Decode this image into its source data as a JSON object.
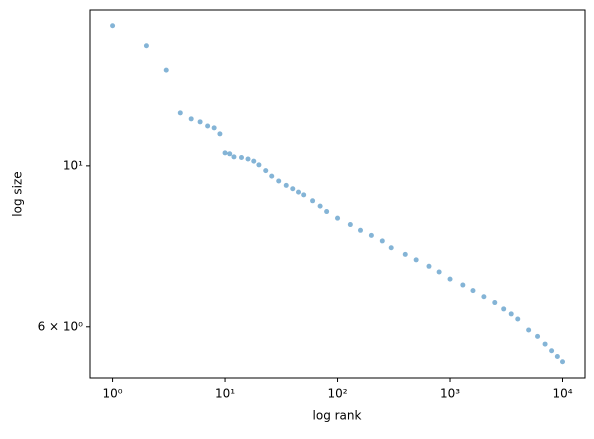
{
  "chart_data": {
    "type": "scatter",
    "x_label": "log rank",
    "y_label": "log size",
    "x": [
      1,
      2,
      3,
      4,
      5,
      6,
      7,
      8,
      9,
      10,
      11,
      12,
      14,
      16,
      18,
      20,
      23,
      26,
      30,
      35,
      40,
      45,
      50,
      60,
      70,
      80,
      100,
      130,
      160,
      200,
      250,
      300,
      400,
      500,
      650,
      800,
      1000,
      1300,
      1600,
      2000,
      2500,
      3000,
      3500,
      4000,
      5000,
      6000,
      7000,
      8000,
      9000,
      10000
    ],
    "series": [
      {
        "color": "#1f77b4",
        "values": [
          15.6,
          14.64,
          13.55,
          11.83,
          11.61,
          11.5,
          11.35,
          11.28,
          11.07,
          10.42,
          10.39,
          10.29,
          10.27,
          10.22,
          10.15,
          10.03,
          9.85,
          9.68,
          9.53,
          9.4,
          9.3,
          9.2,
          9.12,
          8.95,
          8.8,
          8.65,
          8.47,
          8.3,
          8.15,
          8.02,
          7.88,
          7.71,
          7.55,
          7.42,
          7.27,
          7.14,
          6.98,
          6.85,
          6.73,
          6.6,
          6.48,
          6.35,
          6.25,
          6.15,
          5.94,
          5.82,
          5.68,
          5.56,
          5.46,
          5.37
        ]
      }
    ],
    "xlim": [
      0.63,
      15849
    ],
    "ylim": [
      5.1,
      16.4
    ],
    "log_x": true,
    "log_y": true,
    "xticks": [
      {
        "value": 1,
        "label": "10⁰"
      },
      {
        "value": 10,
        "label": "10¹"
      },
      {
        "value": 100,
        "label": "10²"
      },
      {
        "value": 1000,
        "label": "10³"
      },
      {
        "value": 10000,
        "label": "10⁴"
      }
    ],
    "yticks": [
      {
        "value": 6,
        "label": "6 × 10⁰"
      },
      {
        "value": 10,
        "label": "10¹"
      }
    ]
  }
}
